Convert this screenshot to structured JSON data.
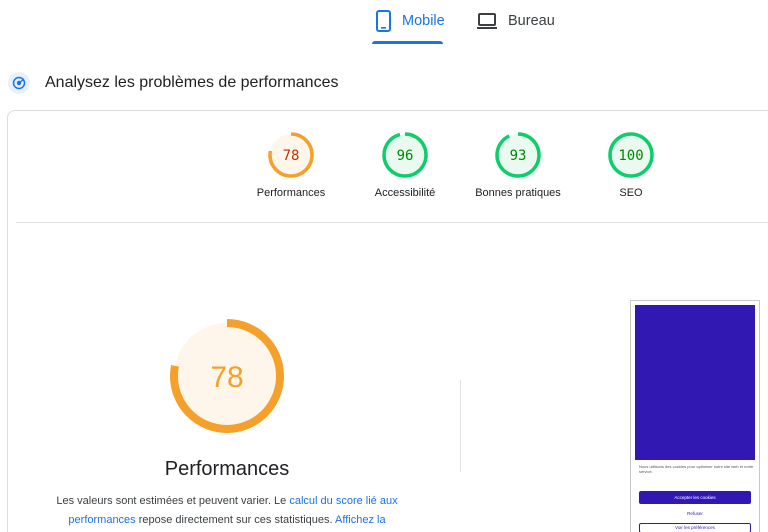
{
  "tabs": [
    {
      "label": "Mobile",
      "icon": "smartphone-icon",
      "selected": true
    },
    {
      "label": "Bureau",
      "icon": "laptop-icon",
      "selected": false
    }
  ],
  "section": {
    "title": "Analysez les problèmes de performances",
    "icon": "diagnostics-icon"
  },
  "scores": [
    {
      "label": "Performances",
      "value": "78",
      "score": 78,
      "color": "#f4a02b",
      "text_color": "#c33300"
    },
    {
      "label": "Accessibilité",
      "value": "96",
      "score": 96,
      "color": "#0cce6b",
      "text_color": "#008800"
    },
    {
      "label": "Bonnes pratiques",
      "value": "93",
      "score": 93,
      "color": "#0cce6b",
      "text_color": "#008800"
    },
    {
      "label": "SEO",
      "value": "100",
      "score": 100,
      "color": "#0cce6b",
      "text_color": "#008800"
    }
  ],
  "main_gauge": {
    "value": "78",
    "score": 78,
    "title": "Performances",
    "color": "#f4a02b"
  },
  "description": {
    "text1": "Les valeurs sont estimées et peuvent varier. Le ",
    "link1": "calcul du score lié aux performances",
    "text2": " repose directement sur ces statistiques.",
    "link2": "Affichez la"
  },
  "screenshot": {
    "text": "Nous utilisons des cookies pour optimiser notre site web et notre service.",
    "accept": "Accepter les cookies",
    "refuse": "Refuser",
    "prefs": "Voir les préférences"
  },
  "colors": {
    "accent": "#1a73e8",
    "average": "#f4a02b",
    "pass": "#0cce6b"
  }
}
